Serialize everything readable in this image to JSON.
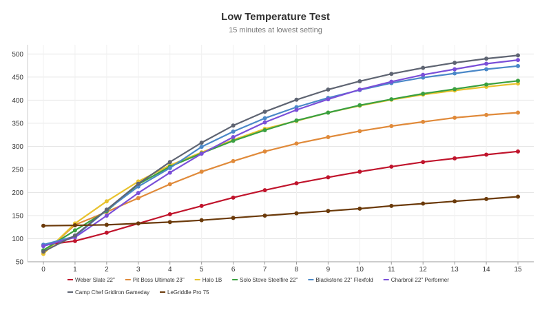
{
  "chart_data": {
    "type": "line",
    "title": "Low Temperature Test",
    "subtitle": "15 minutes at lowest setting",
    "xlabel": "",
    "ylabel": "",
    "x": [
      0,
      1,
      2,
      3,
      4,
      5,
      6,
      7,
      8,
      9,
      10,
      11,
      12,
      13,
      14,
      15
    ],
    "xlim": [
      0,
      15
    ],
    "ylim": [
      50,
      520
    ],
    "yticks": [
      50,
      100,
      150,
      200,
      250,
      300,
      350,
      400,
      450,
      500
    ],
    "grid": true,
    "legend_position": "bottom",
    "series": [
      {
        "name": "Weber Slate 22\"",
        "color": "#c0142c",
        "values": [
          86,
          95,
          113,
          133,
          153,
          171,
          189,
          205,
          220,
          233,
          245,
          256,
          266,
          274,
          282,
          289
        ]
      },
      {
        "name": "Pit Boss Ultimate 23\"",
        "color": "#e08a3a",
        "values": [
          68,
          130,
          158,
          188,
          218,
          245,
          268,
          289,
          306,
          320,
          333,
          344,
          353,
          362,
          368,
          373
        ]
      },
      {
        "name": "Halo 1B",
        "color": "#e8c22e",
        "values": [
          67,
          133,
          181,
          224,
          259,
          287,
          314,
          338,
          355,
          373,
          388,
          401,
          412,
          421,
          429,
          436
        ]
      },
      {
        "name": "Solo Stove Steelfire 22\"",
        "color": "#3aa040",
        "values": [
          75,
          118,
          160,
          218,
          256,
          285,
          312,
          335,
          356,
          373,
          389,
          402,
          414,
          424,
          434,
          442
        ]
      },
      {
        "name": "Blackstone 22\" Flexfold",
        "color": "#4a88c8",
        "values": [
          87,
          105,
          162,
          213,
          253,
          299,
          332,
          361,
          385,
          405,
          422,
          437,
          449,
          458,
          467,
          474
        ]
      },
      {
        "name": "Charbroil 22\" Performer",
        "color": "#7a4fd8",
        "values": [
          84,
          103,
          150,
          199,
          243,
          284,
          320,
          352,
          379,
          402,
          423,
          440,
          455,
          467,
          479,
          487
        ]
      },
      {
        "name": "Camp Chef Gridiron Gameday",
        "color": "#5e6472",
        "values": [
          72,
          107,
          163,
          219,
          266,
          308,
          345,
          375,
          401,
          423,
          441,
          457,
          470,
          481,
          490,
          497
        ]
      },
      {
        "name": "LeGriddle Pro 75",
        "color": "#6b3a0a",
        "values": [
          128,
          129,
          130,
          133,
          136,
          140,
          145,
          150,
          155,
          160,
          165,
          171,
          176,
          181,
          186,
          191
        ]
      }
    ]
  }
}
